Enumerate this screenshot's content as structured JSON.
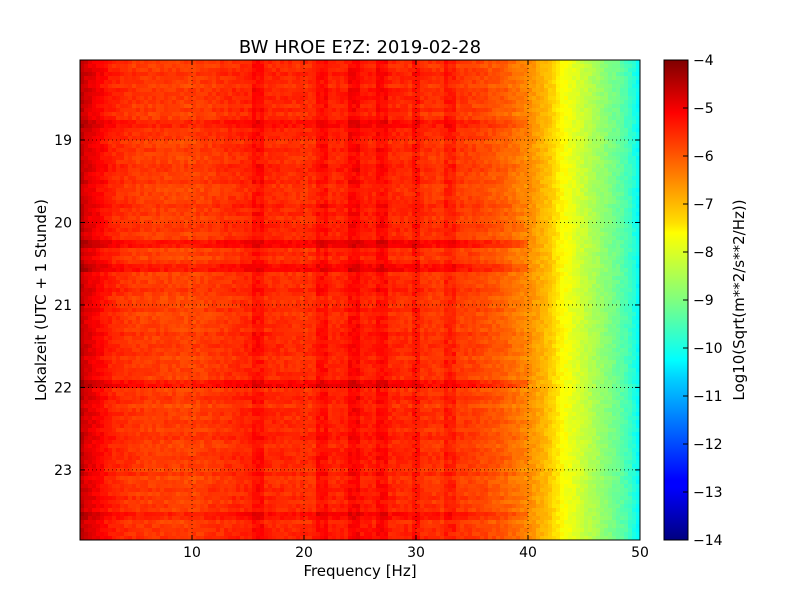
{
  "chart_data": {
    "type": "heatmap",
    "title": "BW HROE E?Z: 2019-02-28",
    "xlabel": "Frequency [Hz]",
    "ylabel": "Lokalzeit (UTC + 1 Stunde)",
    "xlim": [
      0,
      50
    ],
    "ylim": [
      18.03,
      23.85
    ],
    "y_inverted": true,
    "x_ticks": [
      10,
      20,
      30,
      40,
      50
    ],
    "x_tick_labels": [
      "10",
      "20",
      "30",
      "40",
      "50"
    ],
    "y_ticks": [
      19,
      20,
      21,
      22,
      23
    ],
    "y_tick_labels": [
      "19",
      "20",
      "21",
      "22",
      "23"
    ],
    "grid": true,
    "colormap": "jet",
    "colorbar": {
      "label": "Log10(Sqrt(m**2/s**2/Hz))",
      "vmin": -14,
      "vmax": -4,
      "ticks": [
        -4,
        -5,
        -6,
        -7,
        -8,
        -9,
        -10,
        -11,
        -12,
        -13,
        -14
      ],
      "tick_labels": [
        "−4",
        "−5",
        "−6",
        "−7",
        "−8",
        "−9",
        "−10",
        "−11",
        "−12",
        "−13",
        "−14"
      ]
    },
    "spectrum_profile": {
      "frequency_hz": [
        0,
        0.5,
        1.5,
        3,
        5,
        10,
        15,
        20,
        25,
        30,
        35,
        38,
        40,
        42,
        43,
        44,
        45,
        46,
        47,
        48,
        49,
        50
      ],
      "level": [
        -4.6,
        -4.9,
        -5.2,
        -5.6,
        -5.8,
        -5.9,
        -5.6,
        -5.7,
        -5.5,
        -5.7,
        -5.85,
        -6.2,
        -6.6,
        -7.2,
        -7.7,
        -8.0,
        -8.3,
        -8.6,
        -8.9,
        -9.2,
        -9.6,
        -10.3
      ]
    },
    "strong_bands_hz": [
      16,
      21.5,
      24.5,
      27,
      30,
      33
    ],
    "event_rows_time": [
      18.8,
      20.25,
      20.55,
      21.95,
      23.55
    ]
  }
}
